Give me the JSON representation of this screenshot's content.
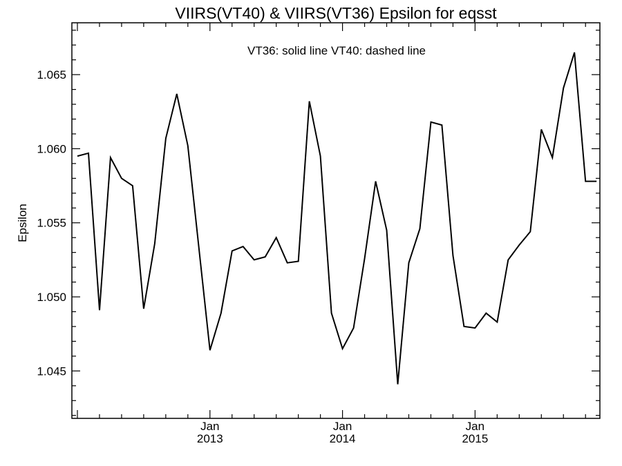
{
  "chart_data": {
    "type": "line",
    "title": "VIIRS(VT40) & VIIRS(VT36)  Epsilon for eqsst",
    "annotation": "VT36: solid line   VT40: dashed line",
    "ylabel": "Epsilon",
    "xlabel": "",
    "ylim": [
      1.0418,
      1.0685
    ],
    "yticks": [
      "1.045",
      "1.050",
      "1.055",
      "1.060",
      "1.065"
    ],
    "ytick_values": [
      1.045,
      1.05,
      1.055,
      1.06,
      1.065
    ],
    "xlim": [
      "2012-01",
      "2015-12"
    ],
    "xticks": [
      {
        "month": "Jan",
        "year": "2013",
        "date": "2013-01"
      },
      {
        "month": "Jan",
        "year": "2014",
        "date": "2014-01"
      },
      {
        "month": "Jan",
        "year": "2015",
        "date": "2015-01"
      }
    ],
    "series": [
      {
        "name": "VT36",
        "style": "solid",
        "color": "#000000",
        "x": [
          "2012-01",
          "2012-02",
          "2012-03",
          "2012-04",
          "2012-05",
          "2012-06",
          "2012-07",
          "2012-08",
          "2012-09",
          "2012-10",
          "2012-11",
          "2012-12",
          "2013-01",
          "2013-02",
          "2013-03",
          "2013-04",
          "2013-05",
          "2013-06",
          "2013-07",
          "2013-08",
          "2013-09",
          "2013-10",
          "2013-11",
          "2013-12",
          "2014-01",
          "2014-02",
          "2014-03",
          "2014-04",
          "2014-05",
          "2014-06",
          "2014-07",
          "2014-08",
          "2014-09",
          "2014-10",
          "2014-11",
          "2014-12",
          "2015-01",
          "2015-02",
          "2015-03",
          "2015-04",
          "2015-05",
          "2015-06",
          "2015-07",
          "2015-08",
          "2015-09",
          "2015-10",
          "2015-11",
          "2015-12"
        ],
        "values": [
          1.0595,
          1.0597,
          1.0491,
          1.0594,
          1.058,
          1.0575,
          1.0492,
          1.0536,
          1.0607,
          1.0637,
          1.0602,
          1.0533,
          1.0464,
          1.0489,
          1.0531,
          1.0534,
          1.0525,
          1.0527,
          1.054,
          1.0523,
          1.0524,
          1.0632,
          1.0595,
          1.0489,
          1.0465,
          1.0479,
          1.0526,
          1.0578,
          1.0545,
          1.0441,
          1.0523,
          1.0546,
          1.0618,
          1.0616,
          1.0528,
          1.048,
          1.0479,
          1.0489,
          1.0483,
          1.0525,
          1.0535,
          1.0544,
          1.0613,
          1.0594,
          1.0641,
          1.0665,
          1.0578,
          1.0578
        ]
      }
    ],
    "grid": false
  }
}
